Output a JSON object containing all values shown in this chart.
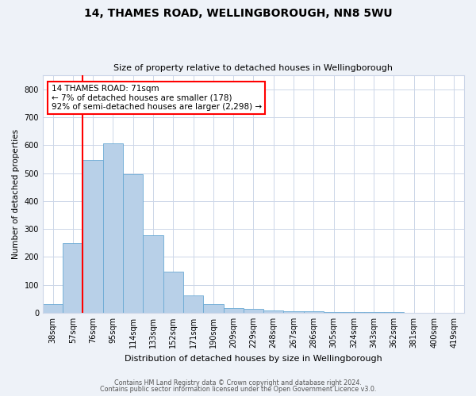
{
  "title_line1": "14, THAMES ROAD, WELLINGBOROUGH, NN8 5WU",
  "title_line2": "Size of property relative to detached houses in Wellingborough",
  "xlabel": "Distribution of detached houses by size in Wellingborough",
  "ylabel": "Number of detached properties",
  "bar_labels": [
    "38sqm",
    "57sqm",
    "76sqm",
    "95sqm",
    "114sqm",
    "133sqm",
    "152sqm",
    "171sqm",
    "190sqm",
    "209sqm",
    "229sqm",
    "248sqm",
    "267sqm",
    "286sqm",
    "305sqm",
    "324sqm",
    "343sqm",
    "362sqm",
    "381sqm",
    "400sqm",
    "419sqm"
  ],
  "bar_values": [
    32,
    248,
    548,
    605,
    495,
    277,
    147,
    62,
    30,
    18,
    13,
    7,
    5,
    5,
    3,
    3,
    2,
    2,
    1,
    1,
    1
  ],
  "bar_color": "#b8d0e8",
  "bar_edge_color": "#6aaad4",
  "annotation_text": "14 THAMES ROAD: 71sqm\n← 7% of detached houses are smaller (178)\n92% of semi-detached houses are larger (2,298) →",
  "annotation_box_color": "white",
  "annotation_box_edge_color": "red",
  "vline_x": 1.5,
  "vline_color": "red",
  "ylim": [
    0,
    850
  ],
  "yticks": [
    0,
    100,
    200,
    300,
    400,
    500,
    600,
    700,
    800
  ],
  "footer_line1": "Contains HM Land Registry data © Crown copyright and database right 2024.",
  "footer_line2": "Contains public sector information licensed under the Open Government Licence v3.0.",
  "bg_color": "#eef2f8",
  "plot_bg_color": "#ffffff",
  "grid_color": "#ccd6e8"
}
